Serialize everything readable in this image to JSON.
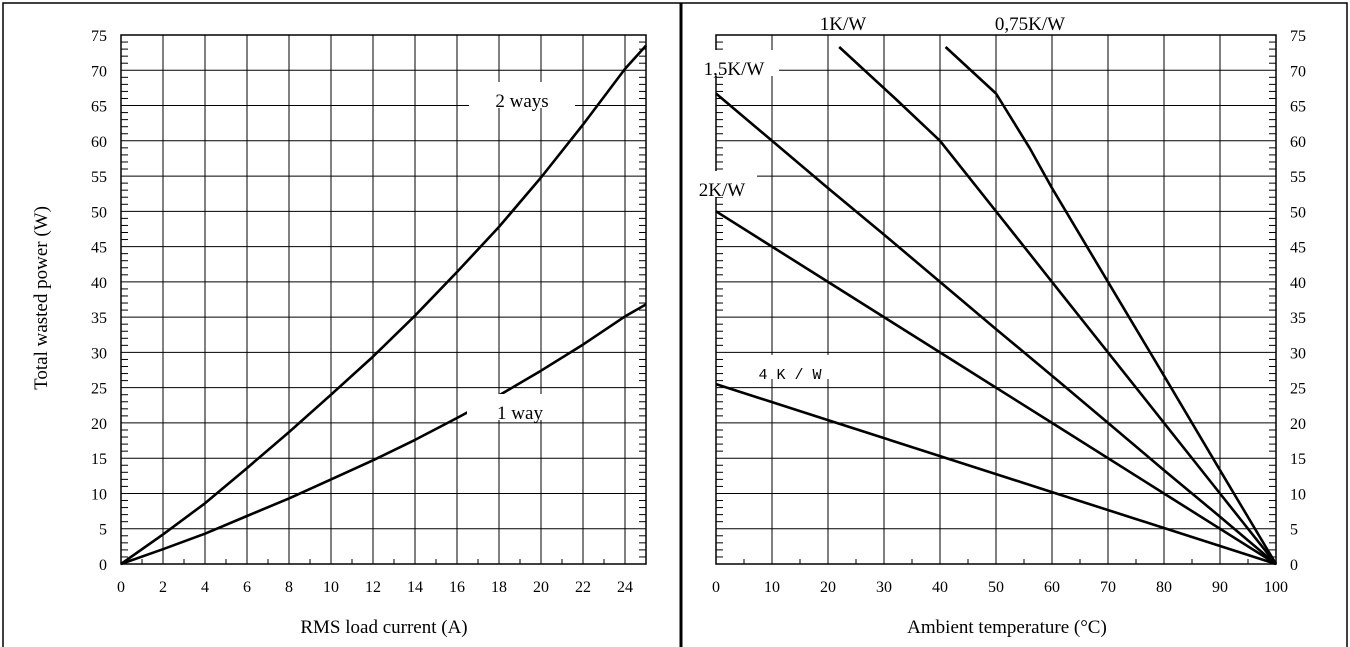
{
  "chart_data": [
    {
      "type": "line",
      "xlabel": "RMS load current (A)",
      "ylabel": "Total wasted power (W)",
      "xlim": [
        0,
        25
      ],
      "ylim": [
        0,
        75
      ],
      "x_ticks": [
        "0",
        "2",
        "4",
        "6",
        "8",
        "10",
        "12",
        "14",
        "16",
        "18",
        "20",
        "22",
        "24"
      ],
      "y_ticks": [
        "0",
        "5",
        "10",
        "15",
        "20",
        "25",
        "30",
        "35",
        "40",
        "45",
        "50",
        "55",
        "60",
        "65",
        "70",
        "75"
      ],
      "grid": true,
      "series": [
        {
          "name": "2 ways",
          "points": [
            [
              0,
              0
            ],
            [
              2,
              4.2
            ],
            [
              4,
              8.6
            ],
            [
              6,
              13.6
            ],
            [
              8,
              18.7
            ],
            [
              10,
              24.0
            ],
            [
              12,
              29.4
            ],
            [
              14,
              35.2
            ],
            [
              16,
              41.4
            ],
            [
              18,
              47.8
            ],
            [
              20,
              54.8
            ],
            [
              22,
              62.3
            ],
            [
              24,
              70.2
            ],
            [
              25,
              73.5
            ]
          ]
        },
        {
          "name": "1 way",
          "points": [
            [
              0,
              0
            ],
            [
              2,
              2.1
            ],
            [
              4,
              4.3
            ],
            [
              6,
              6.8
            ],
            [
              8,
              9.3
            ],
            [
              10,
              12.0
            ],
            [
              12,
              14.7
            ],
            [
              14,
              17.6
            ],
            [
              16,
              20.7
            ],
            [
              18,
              23.9
            ],
            [
              20,
              27.4
            ],
            [
              22,
              31.1
            ],
            [
              24,
              35.1
            ],
            [
              25,
              36.8
            ]
          ]
        }
      ]
    },
    {
      "type": "line",
      "xlabel": "Ambient temperature (°C)",
      "ylabel": "",
      "xlim": [
        0,
        100
      ],
      "ylim": [
        0,
        75
      ],
      "x_ticks": [
        "0",
        "10",
        "20",
        "30",
        "40",
        "50",
        "60",
        "70",
        "80",
        "90",
        "100"
      ],
      "y_ticks": [
        "0",
        "5",
        "10",
        "15",
        "20",
        "25",
        "30",
        "35",
        "40",
        "45",
        "50",
        "55",
        "60",
        "65",
        "70",
        "75"
      ],
      "y_axis_side": "right",
      "grid": true,
      "series": [
        {
          "name": "0,75K/W",
          "points": [
            [
              41,
              73.3
            ],
            [
              50,
              66.7
            ],
            [
              56,
              59
            ],
            [
              60,
              53.3
            ],
            [
              70,
              40
            ],
            [
              80,
              26.7
            ],
            [
              90,
              13.3
            ],
            [
              100,
              0
            ]
          ]
        },
        {
          "name": "1K/W",
          "points": [
            [
              22,
              73.3
            ],
            [
              32,
              66
            ],
            [
              40,
              60
            ],
            [
              50,
              50
            ],
            [
              60,
              40
            ],
            [
              70,
              30
            ],
            [
              80,
              20
            ],
            [
              90,
              10
            ],
            [
              100,
              0
            ]
          ]
        },
        {
          "name": "1,5K/W",
          "points": [
            [
              0,
              66.7
            ],
            [
              10,
              60
            ],
            [
              20,
              53.3
            ],
            [
              30,
              46.7
            ],
            [
              40,
              40
            ],
            [
              50,
              33.3
            ],
            [
              60,
              26.7
            ],
            [
              70,
              20
            ],
            [
              80,
              13.3
            ],
            [
              90,
              6.7
            ],
            [
              100,
              0
            ]
          ]
        },
        {
          "name": "2K/W",
          "points": [
            [
              0,
              50
            ],
            [
              20,
              40
            ],
            [
              40,
              30
            ],
            [
              60,
              20
            ],
            [
              80,
              10
            ],
            [
              100,
              0
            ]
          ]
        },
        {
          "name": "4 K / W",
          "points": [
            [
              0,
              25.5
            ],
            [
              20,
              20.4
            ],
            [
              40,
              15.3
            ],
            [
              60,
              10.2
            ],
            [
              80,
              5.1
            ],
            [
              100,
              0
            ]
          ]
        }
      ]
    }
  ]
}
